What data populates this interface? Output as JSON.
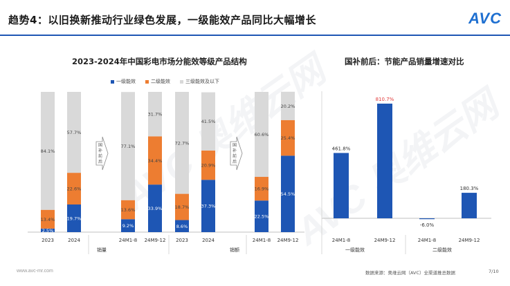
{
  "header": {
    "title": "趋势4：以旧换新推动行业绿色发展，一级能效产品同比大幅增长",
    "logo": "AVC"
  },
  "left_chart_title": "2023-2024年中国彩电市场分能效等级产品结构",
  "right_chart_title": "国补前后：节能产品销量增速对比",
  "legend": [
    "一级能效",
    "二级能效",
    "三级能效及以下"
  ],
  "colors": {
    "level1": "#1e56b4",
    "level2": "#ed7d31",
    "level3": "#d9d9d9",
    "accent": "#1e56b4",
    "highlight": "#e03a3a"
  },
  "arrow_label": "国补前后",
  "group_labels": {
    "sales_volume": "销量",
    "sales_value": "销额",
    "level1": "一级能效",
    "level2": "二级能效"
  },
  "footer": {
    "website": "www.avc-mr.com",
    "source": "数据来源：奥维云网（AVC）全渠道推总数据",
    "page": "7/10"
  },
  "watermark": "AVC 奥维云网",
  "chart_data": [
    {
      "type": "bar",
      "stacked": true,
      "categories": [
        "2023",
        "2024",
        "24M1-8",
        "24M9-12",
        "2023",
        "2024",
        "24M1-8",
        "24M9-12"
      ],
      "series": [
        {
          "name": "一级能效",
          "values": [
            2.5,
            19.7,
            9.2,
            33.9,
            8.6,
            37.3,
            22.5,
            54.5
          ],
          "labels": [
            "2.5%",
            "19.7%",
            "9.2%",
            "33.9%",
            "8.6%",
            "37.3%",
            "22.5%",
            "54.5%"
          ]
        },
        {
          "name": "二级能效",
          "values": [
            13.4,
            22.6,
            13.6,
            34.4,
            18.7,
            20.9,
            16.9,
            25.4
          ],
          "labels": [
            "13.4%",
            "22.6%",
            "13.6%",
            "34.4%",
            "18.7%",
            "20.9%",
            "16.9%",
            "25.4%"
          ]
        },
        {
          "name": "三级能效及以下",
          "values": [
            84.1,
            57.7,
            77.1,
            31.7,
            72.7,
            41.5,
            60.6,
            20.2
          ],
          "labels": [
            "84.1%",
            "57.7%",
            "77.1%",
            "31.7%",
            "72.7%",
            "41.5%",
            "60.6%",
            "20.2%"
          ]
        }
      ],
      "ylim": [
        0,
        100
      ]
    },
    {
      "type": "bar",
      "categories": [
        "24M1-8",
        "24M9-12",
        "24M1-8",
        "24M9-12"
      ],
      "values": [
        461.8,
        810.7,
        -6.0,
        180.3
      ],
      "labels": [
        "461.8%",
        "810.7%",
        "-6.0%",
        "180.3%"
      ],
      "ylim": [
        -50,
        850
      ]
    }
  ]
}
